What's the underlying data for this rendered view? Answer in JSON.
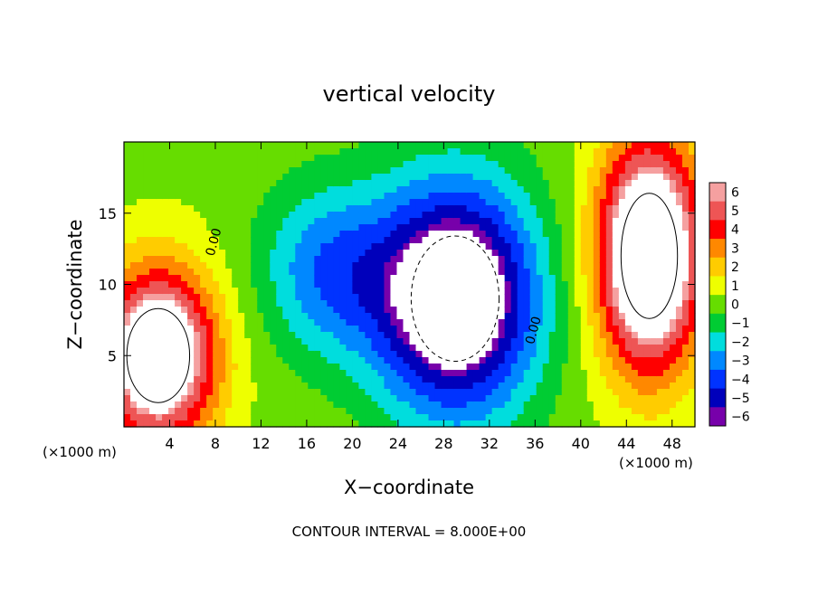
{
  "chart_data": {
    "type": "heatmap",
    "title": "vertical velocity",
    "xlabel": "X−coordinate",
    "ylabel": "Z−coordinate",
    "x_unit_left": "(×1000 m)",
    "x_unit_right": "(×1000 m)",
    "footnote": "CONTOUR INTERVAL = 8.000E+00",
    "xlim": [
      0,
      50
    ],
    "ylim": [
      0,
      20
    ],
    "x_ticks": [
      4,
      8,
      12,
      16,
      20,
      24,
      28,
      32,
      36,
      40,
      44,
      48
    ],
    "x_tick_labels": [
      "4",
      "8",
      "12",
      "16",
      "20",
      "24",
      "28",
      "32",
      "36",
      "40",
      "44",
      "48"
    ],
    "y_ticks": [
      5,
      10,
      15
    ],
    "y_tick_labels": [
      "5",
      "10",
      "15"
    ],
    "contour_labels": [
      {
        "text": "0.00",
        "x": 8.2,
        "z": 12.9
      },
      {
        "text": "0.00",
        "x": 36.2,
        "z": 6.7
      }
    ],
    "colorbar": {
      "levels": [
        6,
        5,
        4,
        3,
        2,
        1,
        0,
        -1,
        -2,
        -3,
        -4,
        -5,
        -6
      ],
      "labels": [
        "6",
        "5",
        "4",
        "3",
        "2",
        "1",
        "0",
        "−1",
        "−2",
        "−3",
        "−4",
        "−5",
        "−6"
      ],
      "colors": [
        "#f5a0a0",
        "#ee5555",
        "#ff0000",
        "#ff8800",
        "#ffcc00",
        "#eeff00",
        "#66dd00",
        "#00cc33",
        "#00dddd",
        "#0088ff",
        "#0033ff",
        "#0000bb",
        "#7700aa"
      ],
      "saturation_color_high": "#ffffff",
      "saturation_color_low": "#ffffff"
    },
    "features": [
      {
        "sign": "positive",
        "x": 46,
        "z": 12,
        "rx": 4.5,
        "rz": 8,
        "amp": 10
      },
      {
        "sign": "positive",
        "x": 3,
        "z": 5,
        "rx": 5,
        "rz": 6,
        "amp": 9
      },
      {
        "sign": "negative",
        "x": 29,
        "z": 9,
        "rx": 7,
        "rz": 8,
        "amp": -9
      },
      {
        "sign": "negative",
        "x": 18,
        "z": 11,
        "rx": 6,
        "rz": 6,
        "amp": -3.5
      }
    ]
  }
}
